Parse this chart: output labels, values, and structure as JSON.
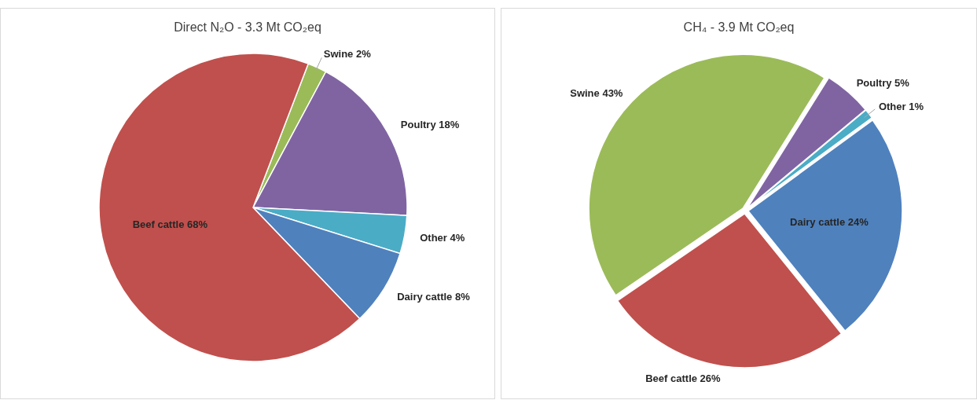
{
  "chart_data": [
    {
      "type": "pie",
      "title": "Direct N₂O - 3.3 Mt CO₂eq",
      "categories": [
        "Swine",
        "Poultry",
        "Other",
        "Dairy cattle",
        "Beef cattle"
      ],
      "values": [
        2,
        18,
        4,
        8,
        68
      ],
      "value_labels": [
        "2%",
        "18%",
        "4%",
        "8%",
        "68%"
      ],
      "colors": [
        "#9bbb59",
        "#8064a2",
        "#4bacc6",
        "#4f81bd",
        "#c0504d"
      ]
    },
    {
      "type": "pie",
      "title": "CH₄ - 3.9 Mt CO₂eq",
      "categories": [
        "Poultry",
        "Other",
        "Dairy cattle",
        "Beef cattle",
        "Swine"
      ],
      "values": [
        5,
        1,
        24,
        26,
        43
      ],
      "value_labels": [
        "5%",
        "1%",
        "24%",
        "26%",
        "43%"
      ],
      "colors": [
        "#8064a2",
        "#4bacc6",
        "#4f81bd",
        "#c0504d",
        "#9bbb59"
      ]
    }
  ]
}
